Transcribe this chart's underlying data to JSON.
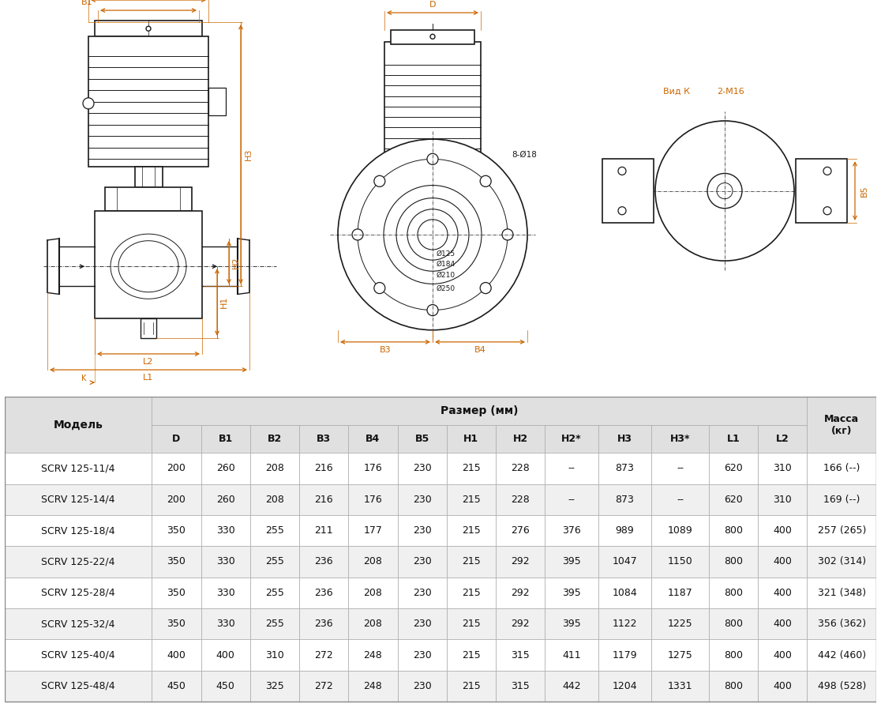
{
  "bg_color": "#ffffff",
  "dim_color": "#cc6600",
  "line_color": "#1a1a1a",
  "table_header_bg": "#e0e0e0",
  "table_sub_bg": "#e8e8e8",
  "table_row_white": "#ffffff",
  "table_row_gray": "#f0f0f0",
  "table_border": "#aaaaaa",
  "columns": [
    "Модель",
    "D",
    "B1",
    "B2",
    "B3",
    "B4",
    "B5",
    "H1",
    "H2",
    "H2*",
    "H3",
    "H3*",
    "L1",
    "L2",
    "Масса\n(кг)"
  ],
  "sub_headers": [
    "D",
    "B1",
    "B2",
    "B3",
    "B4",
    "B5",
    "H1",
    "H2",
    "H2*",
    "H3",
    "H3*",
    "L1",
    "L2"
  ],
  "rows": [
    [
      "SCRV 125-11/4",
      "200",
      "260",
      "208",
      "216",
      "176",
      "230",
      "215",
      "228",
      "--",
      "873",
      "--",
      "620",
      "310",
      "166 (--)"
    ],
    [
      "SCRV 125-14/4",
      "200",
      "260",
      "208",
      "216",
      "176",
      "230",
      "215",
      "228",
      "--",
      "873",
      "--",
      "620",
      "310",
      "169 (--)"
    ],
    [
      "SCRV 125-18/4",
      "350",
      "330",
      "255",
      "211",
      "177",
      "230",
      "215",
      "276",
      "376",
      "989",
      "1089",
      "800",
      "400",
      "257 (265)"
    ],
    [
      "SCRV 125-22/4",
      "350",
      "330",
      "255",
      "236",
      "208",
      "230",
      "215",
      "292",
      "395",
      "1047",
      "1150",
      "800",
      "400",
      "302 (314)"
    ],
    [
      "SCRV 125-28/4",
      "350",
      "330",
      "255",
      "236",
      "208",
      "230",
      "215",
      "292",
      "395",
      "1084",
      "1187",
      "800",
      "400",
      "321 (348)"
    ],
    [
      "SCRV 125-32/4",
      "350",
      "330",
      "255",
      "236",
      "208",
      "230",
      "215",
      "292",
      "395",
      "1122",
      "1225",
      "800",
      "400",
      "356 (362)"
    ],
    [
      "SCRV 125-40/4",
      "400",
      "400",
      "310",
      "272",
      "248",
      "230",
      "215",
      "315",
      "411",
      "1179",
      "1275",
      "800",
      "400",
      "442 (460)"
    ],
    [
      "SCRV 125-48/4",
      "450",
      "450",
      "325",
      "272",
      "248",
      "230",
      "215",
      "315",
      "442",
      "1204",
      "1331",
      "800",
      "400",
      "498 (528)"
    ]
  ],
  "col_rel_widths": [
    1.8,
    0.6,
    0.6,
    0.6,
    0.6,
    0.6,
    0.6,
    0.6,
    0.6,
    0.65,
    0.65,
    0.7,
    0.6,
    0.6,
    0.85
  ]
}
